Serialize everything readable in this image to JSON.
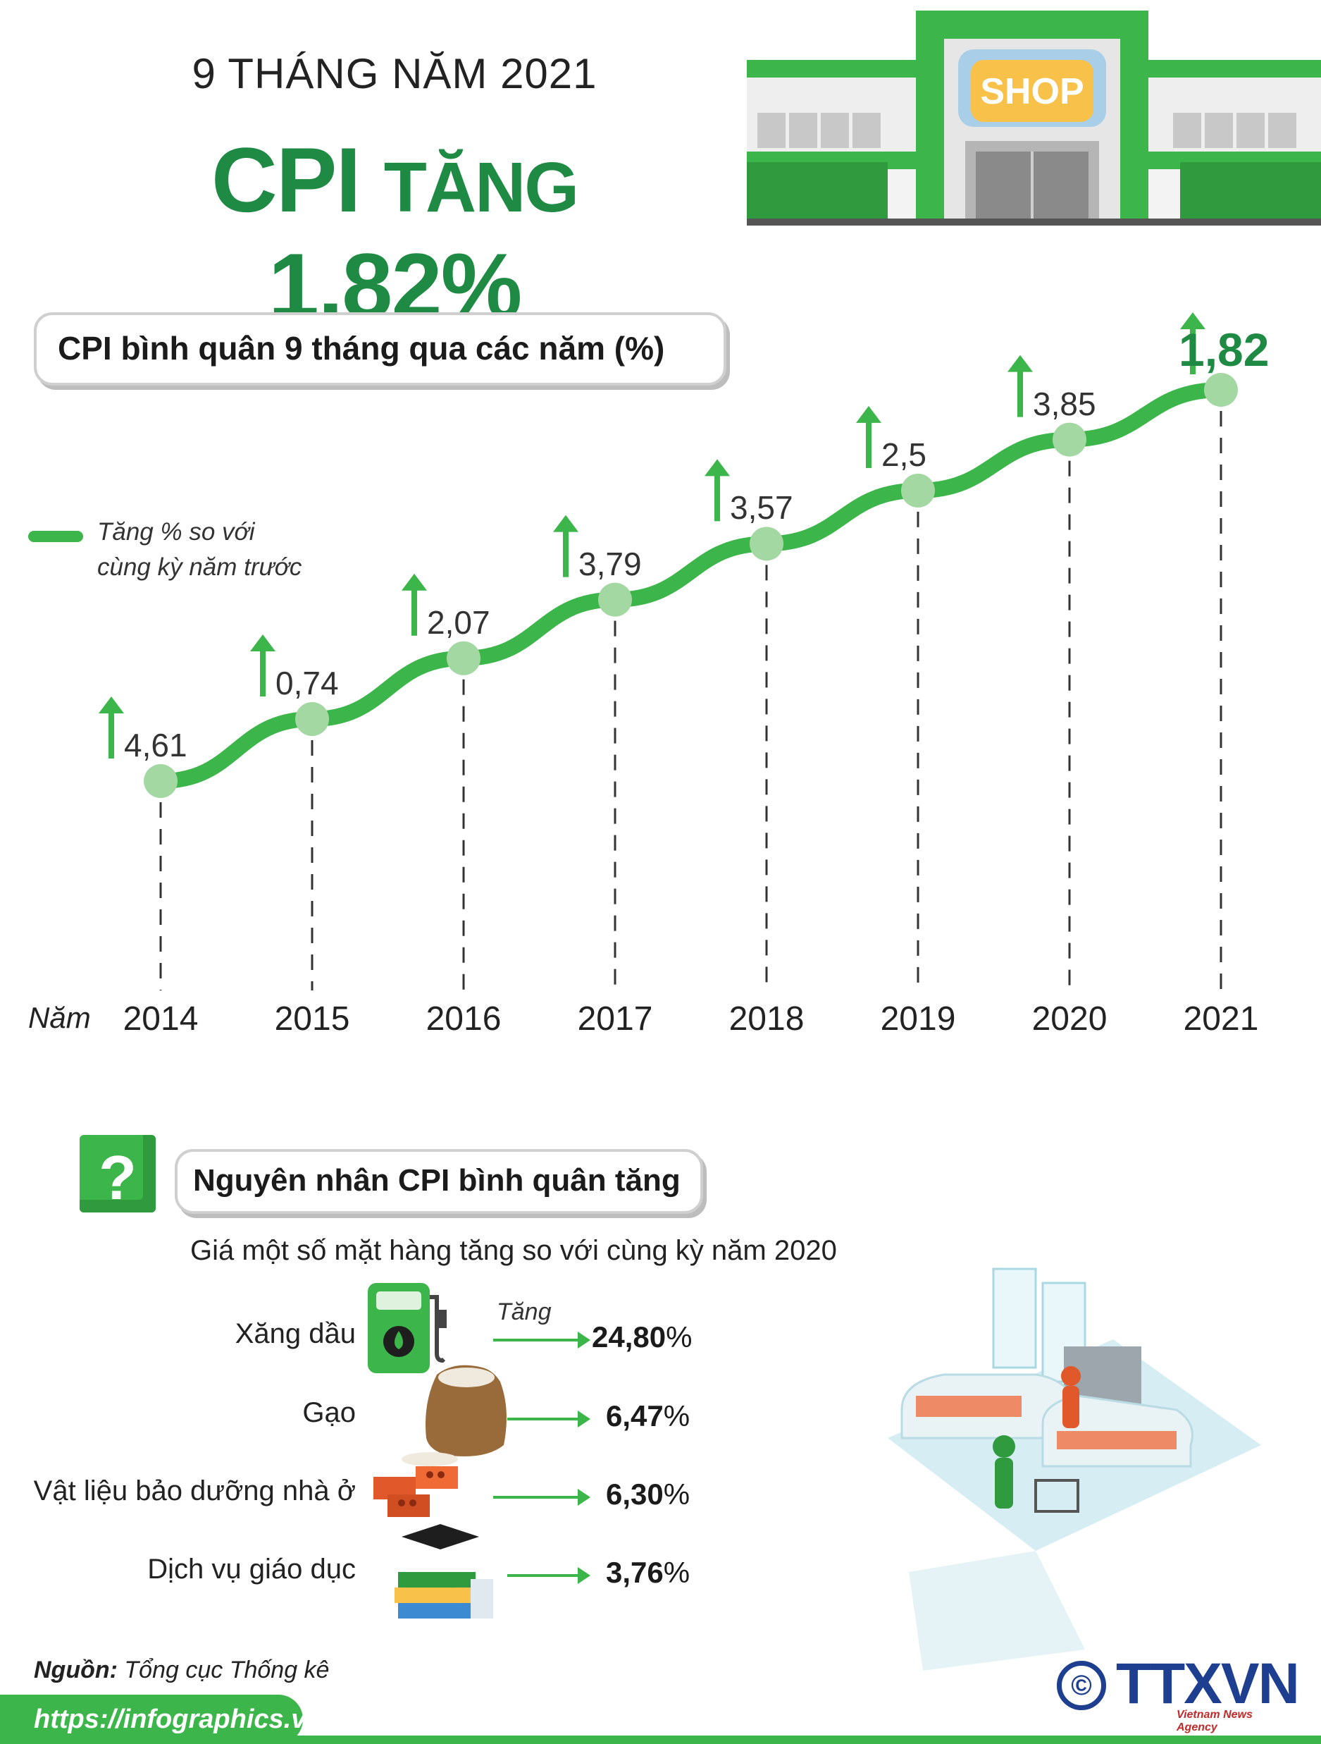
{
  "header": {
    "subtitle": "9 THÁNG NĂM 2021",
    "title_prefix": "CPI",
    "title_mid": "TĂNG",
    "title_value": "1,82%",
    "shop_sign": "SHOP"
  },
  "chart_data": {
    "type": "line",
    "title": "CPI bình quân 9 tháng qua các năm (%)",
    "xlabel": "Năm",
    "ylabel": "",
    "legend": {
      "label_line1": "Tăng % so với",
      "label_line2": "cùng kỳ năm trước",
      "placement": "left"
    },
    "categories": [
      "2014",
      "2015",
      "2016",
      "2017",
      "2018",
      "2019",
      "2020",
      "2021"
    ],
    "series": [
      {
        "values": [
          4.61,
          0.74,
          2.07,
          3.79,
          3.57,
          2.5,
          3.85,
          1.82
        ]
      }
    ],
    "value_labels": [
      "4,61",
      "0,74",
      "2,07",
      "3,79",
      "3,57",
      "2,5",
      "3,85",
      "1,82"
    ],
    "grid": false,
    "colors": {
      "line": "#3cb54a",
      "marker": "#a4d8a2",
      "highlight": "#1f8a44"
    }
  },
  "reasons": {
    "title": "Nguyên nhân CPI bình quân tăng",
    "icon": "question-mark-icon",
    "heading": "Giá một số mặt hàng tăng so với cùng kỳ năm 2020",
    "increase_label": "Tăng",
    "items": [
      {
        "label": "Xăng dầu",
        "value": "24,80",
        "unit": "%",
        "icon": "fuel-pump-icon"
      },
      {
        "label": "Gạo",
        "value": "6,47",
        "unit": "%",
        "icon": "rice-sack-icon"
      },
      {
        "label": "Vật liệu bảo dưỡng nhà ở",
        "value": "6,30",
        "unit": "%",
        "icon": "bricks-icon"
      },
      {
        "label": "Dịch vụ giáo dục",
        "value": "3,76",
        "unit": "%",
        "icon": "books-icon"
      }
    ]
  },
  "footer": {
    "source_label": "Nguồn:",
    "source_value": "Tổng cục Thống kê",
    "url": "https://infographics.vn",
    "logo_text": "TTXVN",
    "logo_sub": "Vietnam News Agency",
    "copyright": "©"
  }
}
